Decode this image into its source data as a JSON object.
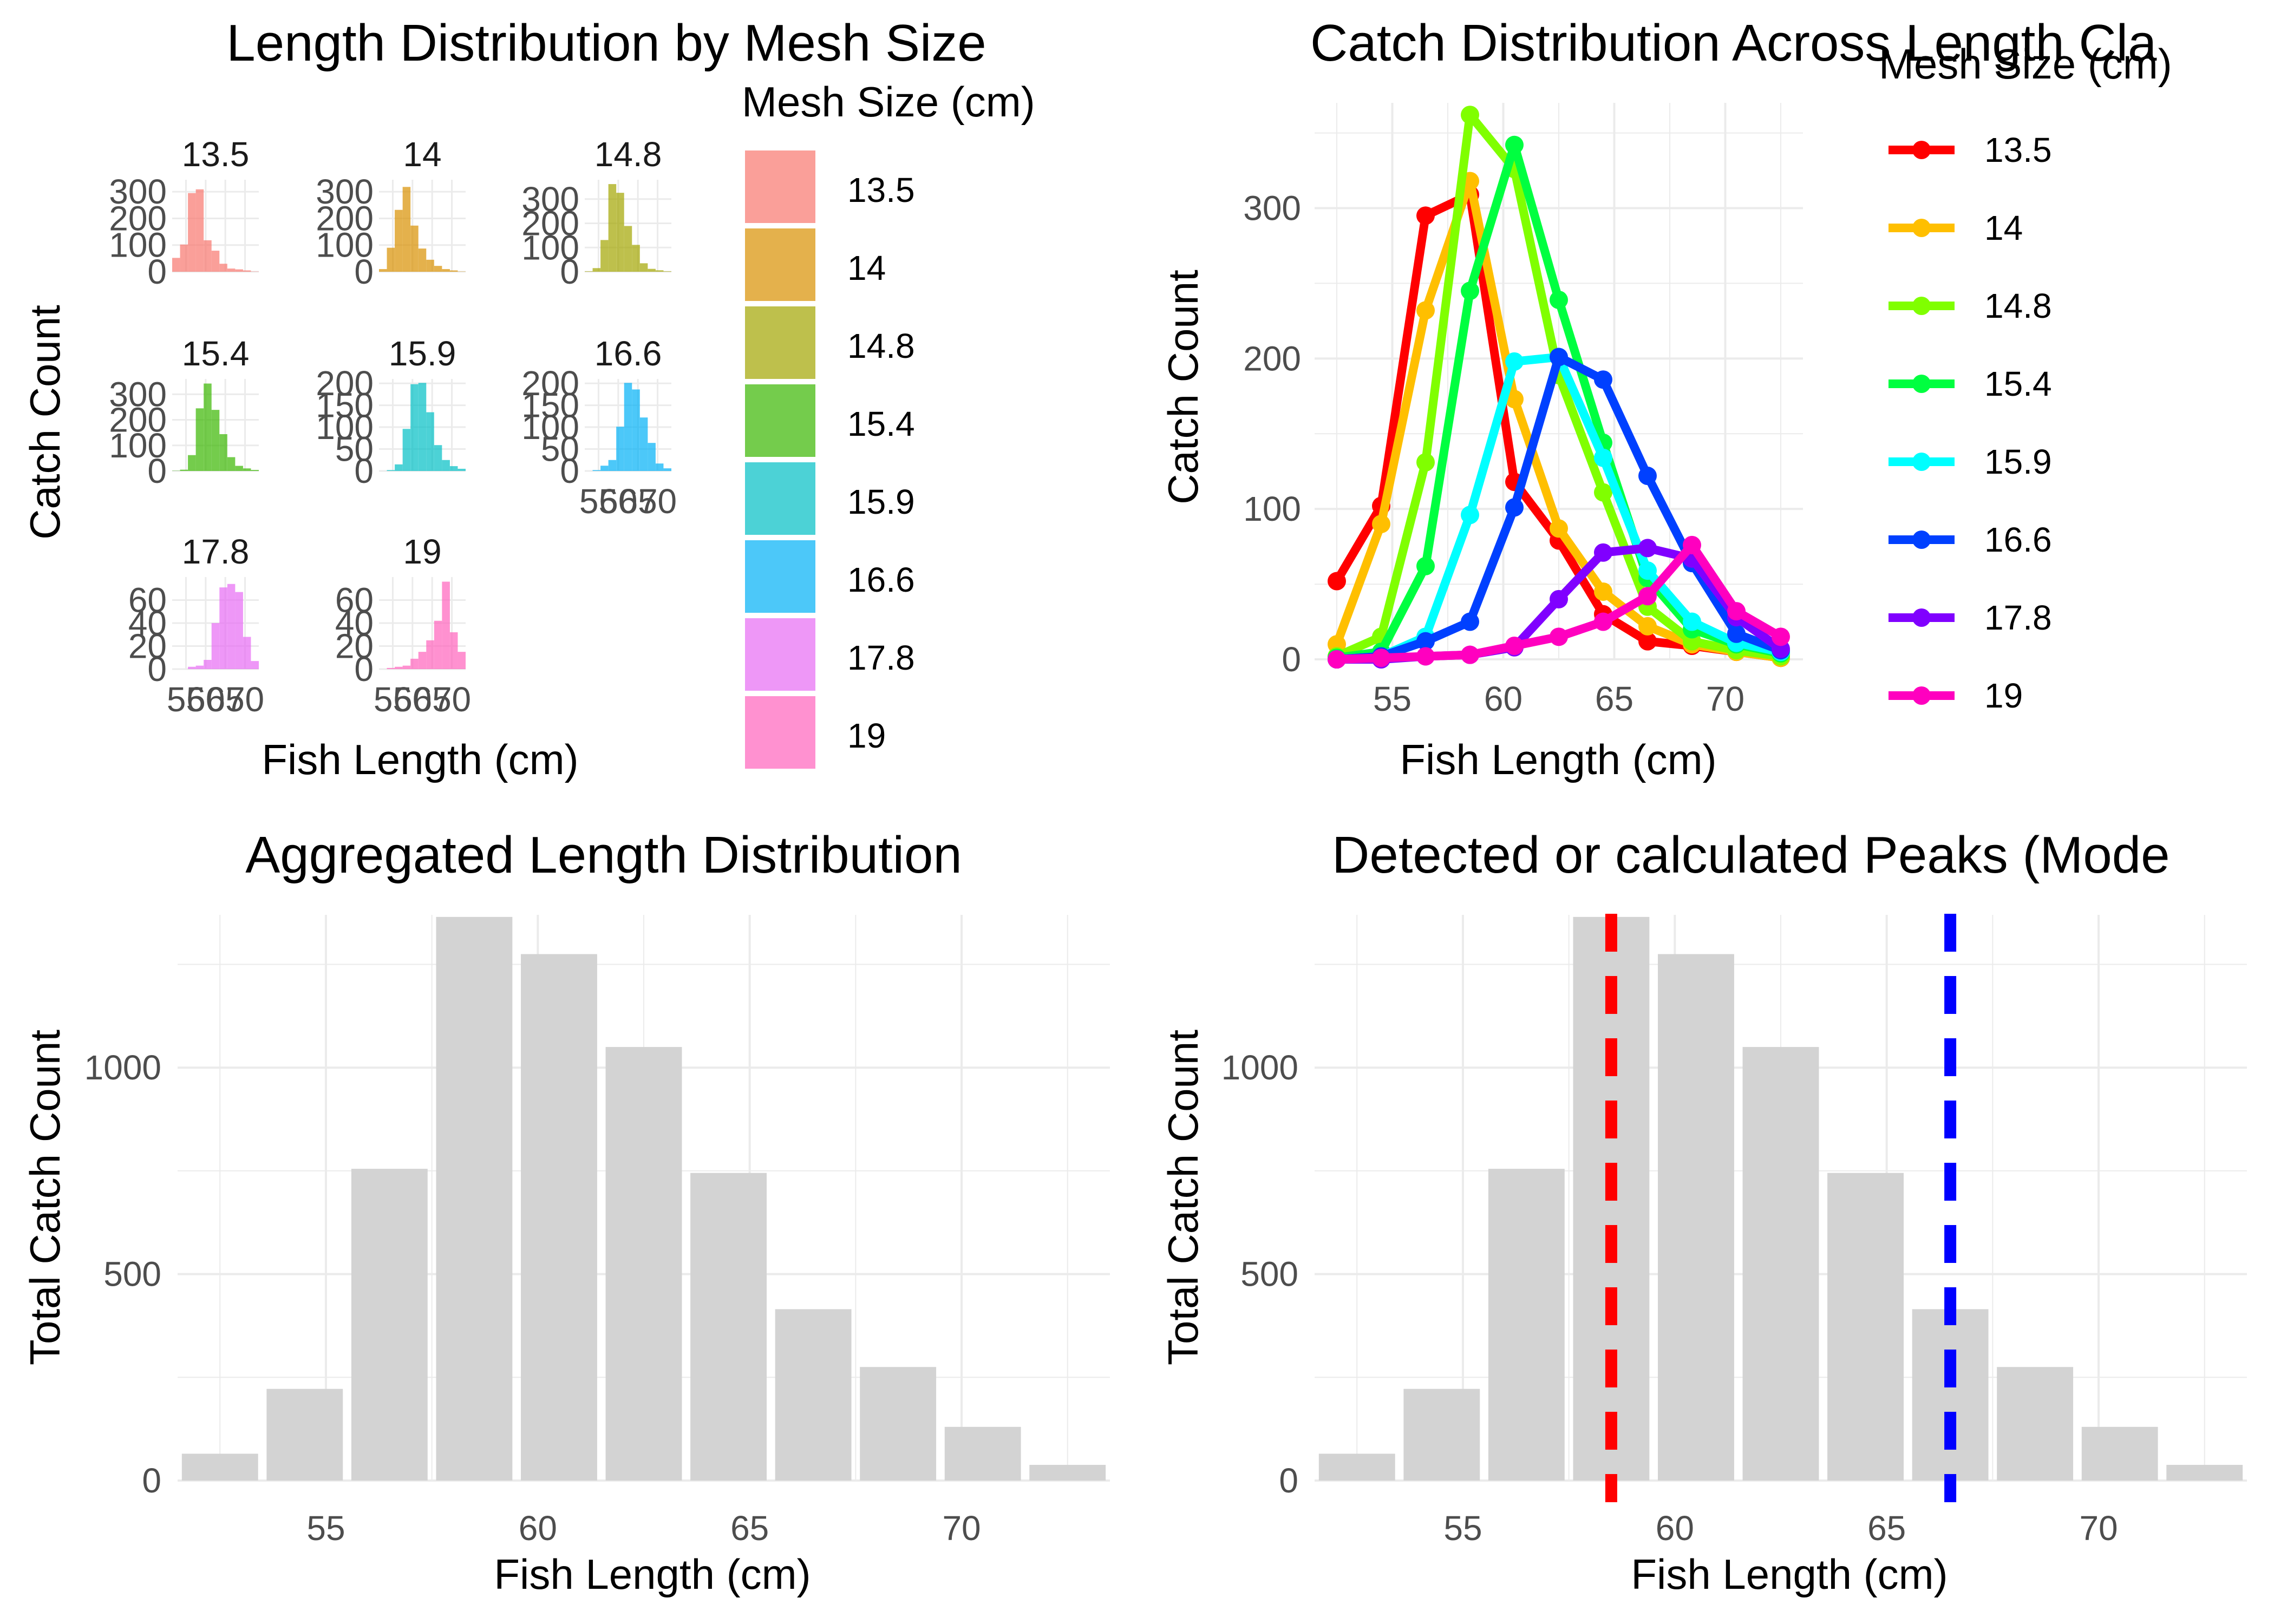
{
  "colors": {
    "grid": "#ebebeb",
    "tick_text": "#4d4d4d",
    "title_text": "#000000",
    "bar_fill": "#d3d3d3",
    "peak_1": "#ff0000",
    "peak_2": "#0000ff"
  },
  "chart_data": [
    {
      "type": "bar",
      "facet": true,
      "title": "Length Distribution by Mesh Size",
      "xlabel": "Fish Length (cm)",
      "ylabel": "Catch Count",
      "legend_title": "Mesh Size (cm)",
      "legend_position": "right",
      "x_ticks": [
        55,
        60,
        65,
        70
      ],
      "x_tick_labels": [
        "55",
        "60",
        "65",
        "70"
      ],
      "categories": [
        52.5,
        54.5,
        56.5,
        58.5,
        60.5,
        62.5,
        64.5,
        66.5,
        68.5,
        70.5,
        72.5
      ],
      "series": [
        {
          "name": "13.5",
          "color": "#f8766d",
          "ylim": [
            0,
            345
          ],
          "yticks": [
            0,
            100,
            200,
            300
          ],
          "values": [
            52,
            102,
            295,
            309,
            118,
            79,
            30,
            12,
            9,
            5,
            1
          ]
        },
        {
          "name": "14",
          "color": "#d89000",
          "ylim": [
            0,
            345
          ],
          "yticks": [
            0,
            100,
            200,
            300
          ],
          "values": [
            10,
            90,
            232,
            318,
            173,
            87,
            45,
            22,
            10,
            5,
            1
          ]
        },
        {
          "name": "14.8",
          "color": "#a3a500",
          "ylim": [
            0,
            380
          ],
          "yticks": [
            0,
            100,
            200,
            300
          ],
          "values": [
            2,
            15,
            131,
            362,
            326,
            189,
            111,
            35,
            12,
            6,
            2
          ]
        },
        {
          "name": "15.4",
          "color": "#39b600",
          "ylim": [
            0,
            360
          ],
          "yticks": [
            0,
            100,
            200,
            300
          ],
          "values": [
            1,
            5,
            62,
            245,
            342,
            239,
            144,
            54,
            20,
            10,
            4
          ]
        },
        {
          "name": "15.9",
          "color": "#00bfc4",
          "ylim": [
            0,
            210
          ],
          "yticks": [
            0,
            50,
            100,
            150,
            200
          ],
          "values": [
            0,
            2,
            15,
            96,
            198,
            201,
            134,
            59,
            25,
            11,
            5
          ]
        },
        {
          "name": "16.6",
          "color": "#00b0f6",
          "ylim": [
            0,
            210
          ],
          "yticks": [
            0,
            50,
            100,
            150,
            200
          ],
          "values": [
            0,
            2,
            12,
            25,
            101,
            201,
            186,
            122,
            64,
            17,
            6
          ]
        },
        {
          "name": "17.8",
          "color": "#e76bf3",
          "ylim": [
            0,
            80
          ],
          "yticks": [
            0,
            20,
            40,
            60
          ],
          "values": [
            0,
            0,
            2,
            3,
            8,
            40,
            71,
            74,
            67,
            28,
            7
          ]
        },
        {
          "name": "19",
          "color": "#ff62bc",
          "ylim": [
            0,
            80
          ],
          "yticks": [
            0,
            20,
            40,
            60
          ],
          "values": [
            0,
            1,
            2,
            3,
            9,
            15,
            25,
            42,
            76,
            32,
            15
          ]
        }
      ]
    },
    {
      "type": "line",
      "title": "Catch Distribution Across Length Cla",
      "xlabel": "Fish Length (cm)",
      "ylabel": "Catch Count",
      "legend_title": "Mesh Size (cm)",
      "legend_position": "right",
      "xlim": [
        51.5,
        73.5
      ],
      "ylim": [
        0,
        370
      ],
      "x_ticks": [
        55,
        60,
        65,
        70
      ],
      "y_ticks": [
        0,
        100,
        200,
        300
      ],
      "x": [
        52.5,
        54.5,
        56.5,
        58.5,
        60.5,
        62.5,
        64.5,
        66.5,
        68.5,
        70.5,
        72.5
      ],
      "series": [
        {
          "name": "13.5",
          "color": "#ff0000",
          "values": [
            52,
            102,
            295,
            309,
            118,
            79,
            30,
            12,
            9,
            5,
            1
          ]
        },
        {
          "name": "14",
          "color": "#ffbf00",
          "values": [
            10,
            90,
            232,
            318,
            173,
            87,
            45,
            22,
            10,
            5,
            1
          ]
        },
        {
          "name": "14.8",
          "color": "#80ff00",
          "values": [
            2,
            15,
            131,
            362,
            326,
            189,
            111,
            35,
            12,
            6,
            2
          ]
        },
        {
          "name": "15.4",
          "color": "#00ff40",
          "values": [
            1,
            5,
            62,
            245,
            342,
            239,
            144,
            54,
            20,
            10,
            4
          ]
        },
        {
          "name": "15.9",
          "color": "#00ffff",
          "values": [
            0,
            2,
            15,
            96,
            198,
            201,
            134,
            59,
            25,
            11,
            5
          ]
        },
        {
          "name": "16.6",
          "color": "#0040ff",
          "values": [
            0,
            2,
            12,
            25,
            101,
            201,
            186,
            122,
            64,
            17,
            6
          ]
        },
        {
          "name": "17.8",
          "color": "#8000ff",
          "values": [
            0,
            0,
            2,
            3,
            8,
            40,
            71,
            74,
            67,
            28,
            7
          ]
        },
        {
          "name": "19",
          "color": "#ff00bf",
          "values": [
            0,
            1,
            2,
            3,
            9,
            15,
            25,
            42,
            76,
            32,
            15
          ]
        }
      ]
    },
    {
      "type": "bar",
      "title": "Aggregated Length Distribution",
      "xlabel": "Fish Length (cm)",
      "ylabel": "Total Catch Count",
      "xlim": [
        51.5,
        73.5
      ],
      "ylim": [
        0,
        1370
      ],
      "x_ticks": [
        55,
        60,
        65,
        70
      ],
      "y_ticks": [
        0,
        500,
        1000
      ],
      "categories": [
        52.5,
        54.5,
        56.5,
        58.5,
        60.5,
        62.5,
        64.5,
        66.5,
        68.5,
        70.5,
        72.5
      ],
      "values": [
        65,
        222,
        755,
        1365,
        1275,
        1050,
        745,
        415,
        275,
        130,
        38
      ]
    },
    {
      "type": "bar",
      "title": "Detected or calculated Peaks (Mode",
      "xlabel": "Fish Length (cm)",
      "ylabel": "Total Catch Count",
      "xlim": [
        51.5,
        73.5
      ],
      "ylim": [
        0,
        1370
      ],
      "x_ticks": [
        55,
        60,
        65,
        70
      ],
      "y_ticks": [
        0,
        500,
        1000
      ],
      "categories": [
        52.5,
        54.5,
        56.5,
        58.5,
        60.5,
        62.5,
        64.5,
        66.5,
        68.5,
        70.5,
        72.5
      ],
      "values": [
        65,
        222,
        755,
        1365,
        1275,
        1050,
        745,
        415,
        275,
        130,
        38
      ],
      "peaks": [
        {
          "x": 58.5,
          "color": "#ff0000"
        },
        {
          "x": 66.5,
          "color": "#0000ff"
        }
      ]
    }
  ]
}
